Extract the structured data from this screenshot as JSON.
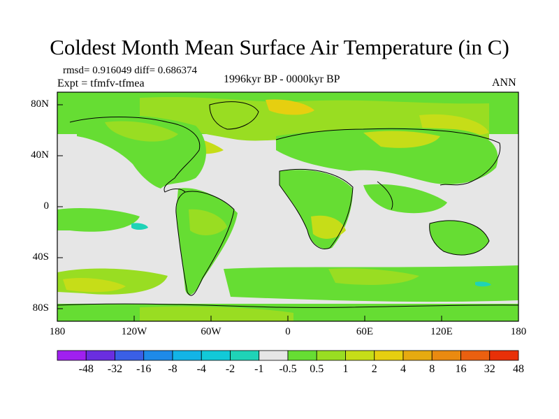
{
  "title": "Coldest Month Mean Surface Air Temperature (in C)",
  "stats": "rmsd= 0.916049  diff= 0.686374",
  "experiment": "Expt = tfmfv-tfmea",
  "period": "1996kyr BP - 0000kyr BP",
  "season": "ANN",
  "lat_labels": [
    "80N",
    "40N",
    "0",
    "40S",
    "80S"
  ],
  "lon_labels": [
    "180",
    "120W",
    "60W",
    "0",
    "60E",
    "120E",
    "180"
  ],
  "colorbar": {
    "labels": [
      "-48",
      "-32",
      "-16",
      "-8",
      "-4",
      "-2",
      "-1",
      "-0.5",
      "0.5",
      "1",
      "2",
      "4",
      "8",
      "16",
      "32",
      "48"
    ],
    "colors": [
      "#a020f0",
      "#6a2ee0",
      "#3a5fe6",
      "#1e8ae8",
      "#13b4e6",
      "#12c9d8",
      "#1fd3b7",
      "#e6e6e6",
      "#66dd33",
      "#99dd22",
      "#c6dd18",
      "#e6cf10",
      "#e6aa10",
      "#ea8a10",
      "#ea6010",
      "#e83008"
    ]
  },
  "colors": {
    "ocean_neutral": "#e6e6e6",
    "warm_1": "#66dd33",
    "warm_2": "#99dd22",
    "warm_3": "#c6dd18",
    "warm_4": "#e6cf10",
    "cool_1": "#1fd3b7"
  }
}
